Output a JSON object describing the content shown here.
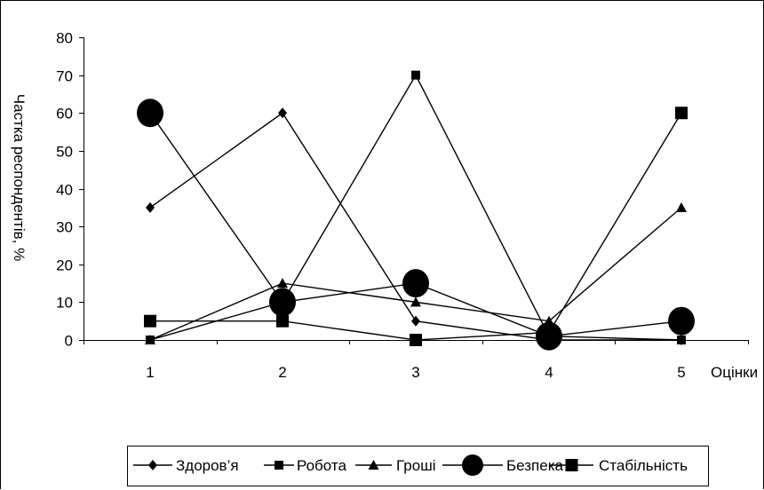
{
  "chart_data": {
    "type": "line",
    "title": "",
    "xlabel": "Оцінки",
    "ylabel": "Частка респондентів, %",
    "x": [
      "1",
      "2",
      "3",
      "4",
      "5"
    ],
    "ylim": [
      0,
      80
    ],
    "yticks": [
      0,
      10,
      20,
      30,
      40,
      50,
      60,
      70,
      80
    ],
    "grid": false,
    "legend_position": "bottom",
    "series": [
      {
        "name": "Здоров’я",
        "marker": "diamond",
        "color": "#000000",
        "values": [
          35,
          60,
          5,
          0,
          0
        ]
      },
      {
        "name": "Робота",
        "marker": "square",
        "color": "#000000",
        "values": [
          0,
          10,
          70,
          1,
          0
        ]
      },
      {
        "name": "Гроші",
        "marker": "triangle",
        "color": "#000000",
        "values": [
          0,
          15,
          10,
          5,
          35
        ]
      },
      {
        "name": "Безпека",
        "marker": "circle",
        "color": "#000000",
        "values": [
          60,
          10,
          15,
          1,
          5
        ]
      },
      {
        "name": "Стабільність",
        "marker": "square-big",
        "color": "#000000",
        "values": [
          5,
          5,
          0,
          2,
          60
        ]
      }
    ]
  }
}
